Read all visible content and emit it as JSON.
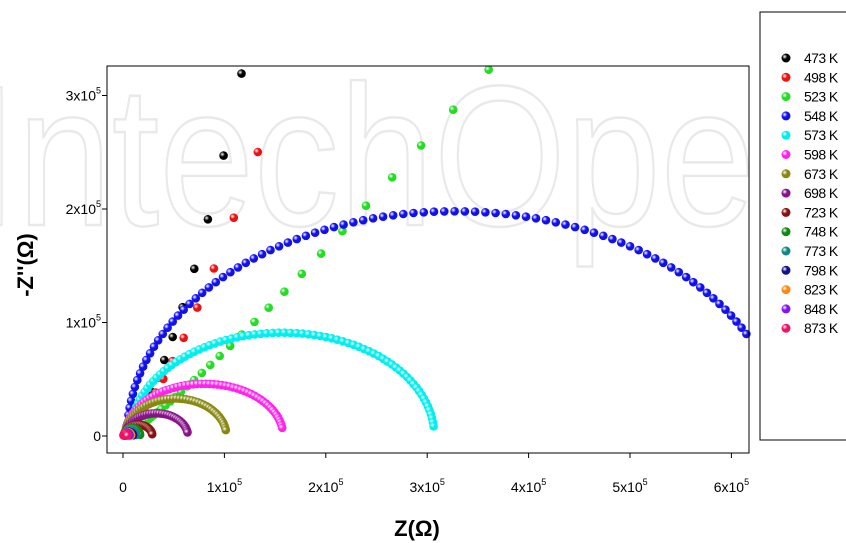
{
  "watermark": "IntechOpen",
  "chart_data": {
    "type": "scatter",
    "title": "",
    "xlabel": "Z(Ω)",
    "ylabel": "-Z''(Ω)",
    "xlim": [
      -20000,
      650000
    ],
    "ylim": [
      -20000,
      330000
    ],
    "x_ticks": [
      {
        "value": 0,
        "base": "0",
        "exp": ""
      },
      {
        "value": 100000,
        "base": "1x10",
        "exp": "5"
      },
      {
        "value": 200000,
        "base": "2x10",
        "exp": "5"
      },
      {
        "value": 300000,
        "base": "3x10",
        "exp": "5"
      },
      {
        "value": 400000,
        "base": "4x10",
        "exp": "5"
      },
      {
        "value": 500000,
        "base": "5x10",
        "exp": "5"
      },
      {
        "value": 600000,
        "base": "6x10",
        "exp": "5"
      }
    ],
    "y_ticks": [
      {
        "value": 0,
        "base": "0",
        "exp": ""
      },
      {
        "value": 100000,
        "base": "1x10",
        "exp": "5"
      },
      {
        "value": 200000,
        "base": "2x10",
        "exp": "5"
      },
      {
        "value": 300000,
        "base": "3x10",
        "exp": "5"
      }
    ],
    "grid": false,
    "legend_position": "right",
    "series": [
      {
        "name": "473 K",
        "color": "#000000",
        "shape": "arc",
        "points": 22,
        "r_min": 2000,
        "r_max": 340000,
        "theta_min": 0.15,
        "theta_max": 1.22
      },
      {
        "name": "498 K",
        "color": "#ee1111",
        "shape": "arc",
        "points": 22,
        "r_min": 2000,
        "r_max": 363000,
        "theta_min": 0.15,
        "theta_max": 1.11
      },
      {
        "name": "523 K",
        "color": "#22dd22",
        "shape": "arc",
        "points": 48,
        "r_min": 3000,
        "r_max": 484000,
        "theta_min": 0.2,
        "theta_max": 0.73
      },
      {
        "name": "548 K",
        "color": "#1111ee",
        "shape": "semicircle",
        "points": 95,
        "center": 327000,
        "radius": 323000,
        "height": 198000,
        "phase_min": 0.03,
        "phase_max": 0.97
      },
      {
        "name": "573 K",
        "color": "#00eeee",
        "shape": "semicircle",
        "points": 75,
        "center": 157000,
        "radius": 150000,
        "height": 91000,
        "phase_min": 0.04,
        "phase_max": 0.97
      },
      {
        "name": "598 K",
        "color": "#ff22ee",
        "shape": "semicircle",
        "points": 55,
        "center": 80000,
        "radius": 78000,
        "height": 46000,
        "phase_min": 0.06,
        "phase_max": 0.95
      },
      {
        "name": "673 K",
        "color": "#888811",
        "shape": "semicircle",
        "points": 45,
        "center": 52000,
        "radius": 50000,
        "height": 33000,
        "phase_min": 0.06,
        "phase_max": 0.95
      },
      {
        "name": "698 K",
        "color": "#881188",
        "shape": "semicircle",
        "points": 35,
        "center": 33000,
        "radius": 31000,
        "height": 20000,
        "phase_min": 0.06,
        "phase_max": 0.95
      },
      {
        "name": "723 K",
        "color": "#881111",
        "shape": "semicircle",
        "points": 25,
        "center": 15000,
        "radius": 14000,
        "height": 10000,
        "phase_min": 0.06,
        "phase_max": 0.95
      },
      {
        "name": "748 K",
        "color": "#118811",
        "shape": "semicircle",
        "points": 20,
        "center": 9000,
        "radius": 8000,
        "height": 7000,
        "phase_min": 0.06,
        "phase_max": 0.95
      },
      {
        "name": "773 K",
        "color": "#118888",
        "shape": "semicircle",
        "points": 18,
        "center": 7000,
        "radius": 6000,
        "height": 5500,
        "phase_min": 0.06,
        "phase_max": 0.95
      },
      {
        "name": "798 K",
        "color": "#111188",
        "shape": "semicircle",
        "points": 16,
        "center": 5500,
        "radius": 4500,
        "height": 4000,
        "phase_min": 0.06,
        "phase_max": 0.95
      },
      {
        "name": "823 K",
        "color": "#ff8811",
        "shape": "semicircle",
        "points": 14,
        "center": 4500,
        "radius": 3500,
        "height": 3500,
        "phase_min": 0.06,
        "phase_max": 0.95
      },
      {
        "name": "848 K",
        "color": "#8811ee",
        "shape": "semicircle",
        "points": 14,
        "center": 3500,
        "radius": 3000,
        "height": 3000,
        "phase_min": 0.06,
        "phase_max": 0.95
      },
      {
        "name": "873 K",
        "color": "#ee1166",
        "shape": "semicircle",
        "points": 14,
        "center": 2500,
        "radius": 2000,
        "height": 2500,
        "phase_min": 0.06,
        "phase_max": 0.95
      }
    ]
  }
}
